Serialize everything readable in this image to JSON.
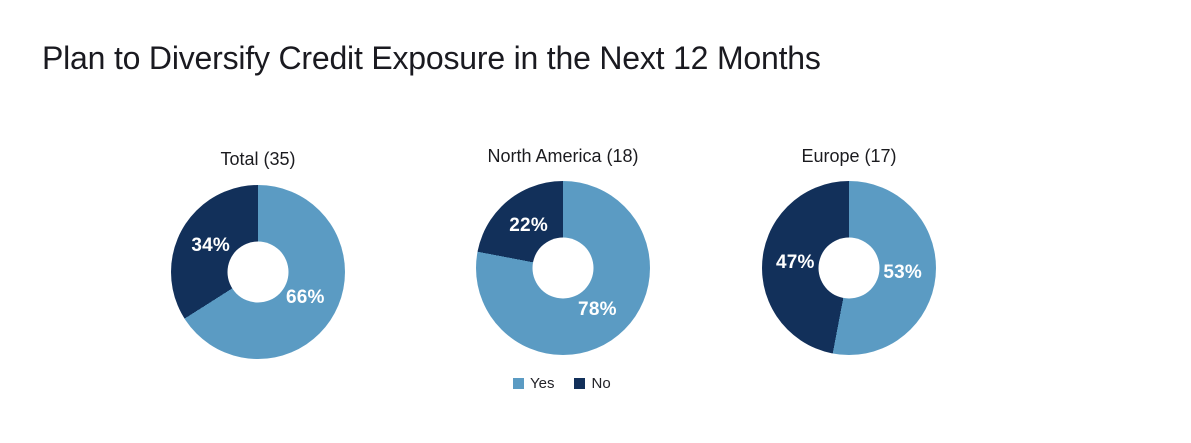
{
  "header": {
    "title": "Plan to Diversify Credit Exposure in the Next 12 Months"
  },
  "colors": {
    "background": "#FFFFFF",
    "title_text": "#1A1A20",
    "chart_title_text": "#1B1B1F",
    "slice_label_text": "#FFFFFF",
    "legend_text": "#222228",
    "yes": "#5B9BC3",
    "no": "#12305A"
  },
  "chart_data": {
    "type": "pie",
    "subtype": "donut",
    "title": "Plan to Diversify Credit Exposure in the Next 12 Months",
    "legend": [
      "Yes",
      "No"
    ],
    "legend_position": "bottom-center",
    "series_colors": {
      "Yes": "#5B9BC3",
      "No": "#12305A"
    },
    "unit": "percent",
    "slice_start": "top-clockwise",
    "charts": [
      {
        "title": "Total (35)",
        "group": "Total",
        "sample_size": 35,
        "slices": [
          {
            "name": "Yes",
            "pct": 66
          },
          {
            "name": "No",
            "pct": 34
          }
        ]
      },
      {
        "title": "North America (18)",
        "group": "North America",
        "sample_size": 18,
        "slices": [
          {
            "name": "Yes",
            "pct": 78
          },
          {
            "name": "No",
            "pct": 22
          }
        ]
      },
      {
        "title": "Europe (17)",
        "group": "Europe",
        "sample_size": 17,
        "slices": [
          {
            "name": "Yes",
            "pct": 53
          },
          {
            "name": "No",
            "pct": 47
          }
        ]
      }
    ]
  }
}
